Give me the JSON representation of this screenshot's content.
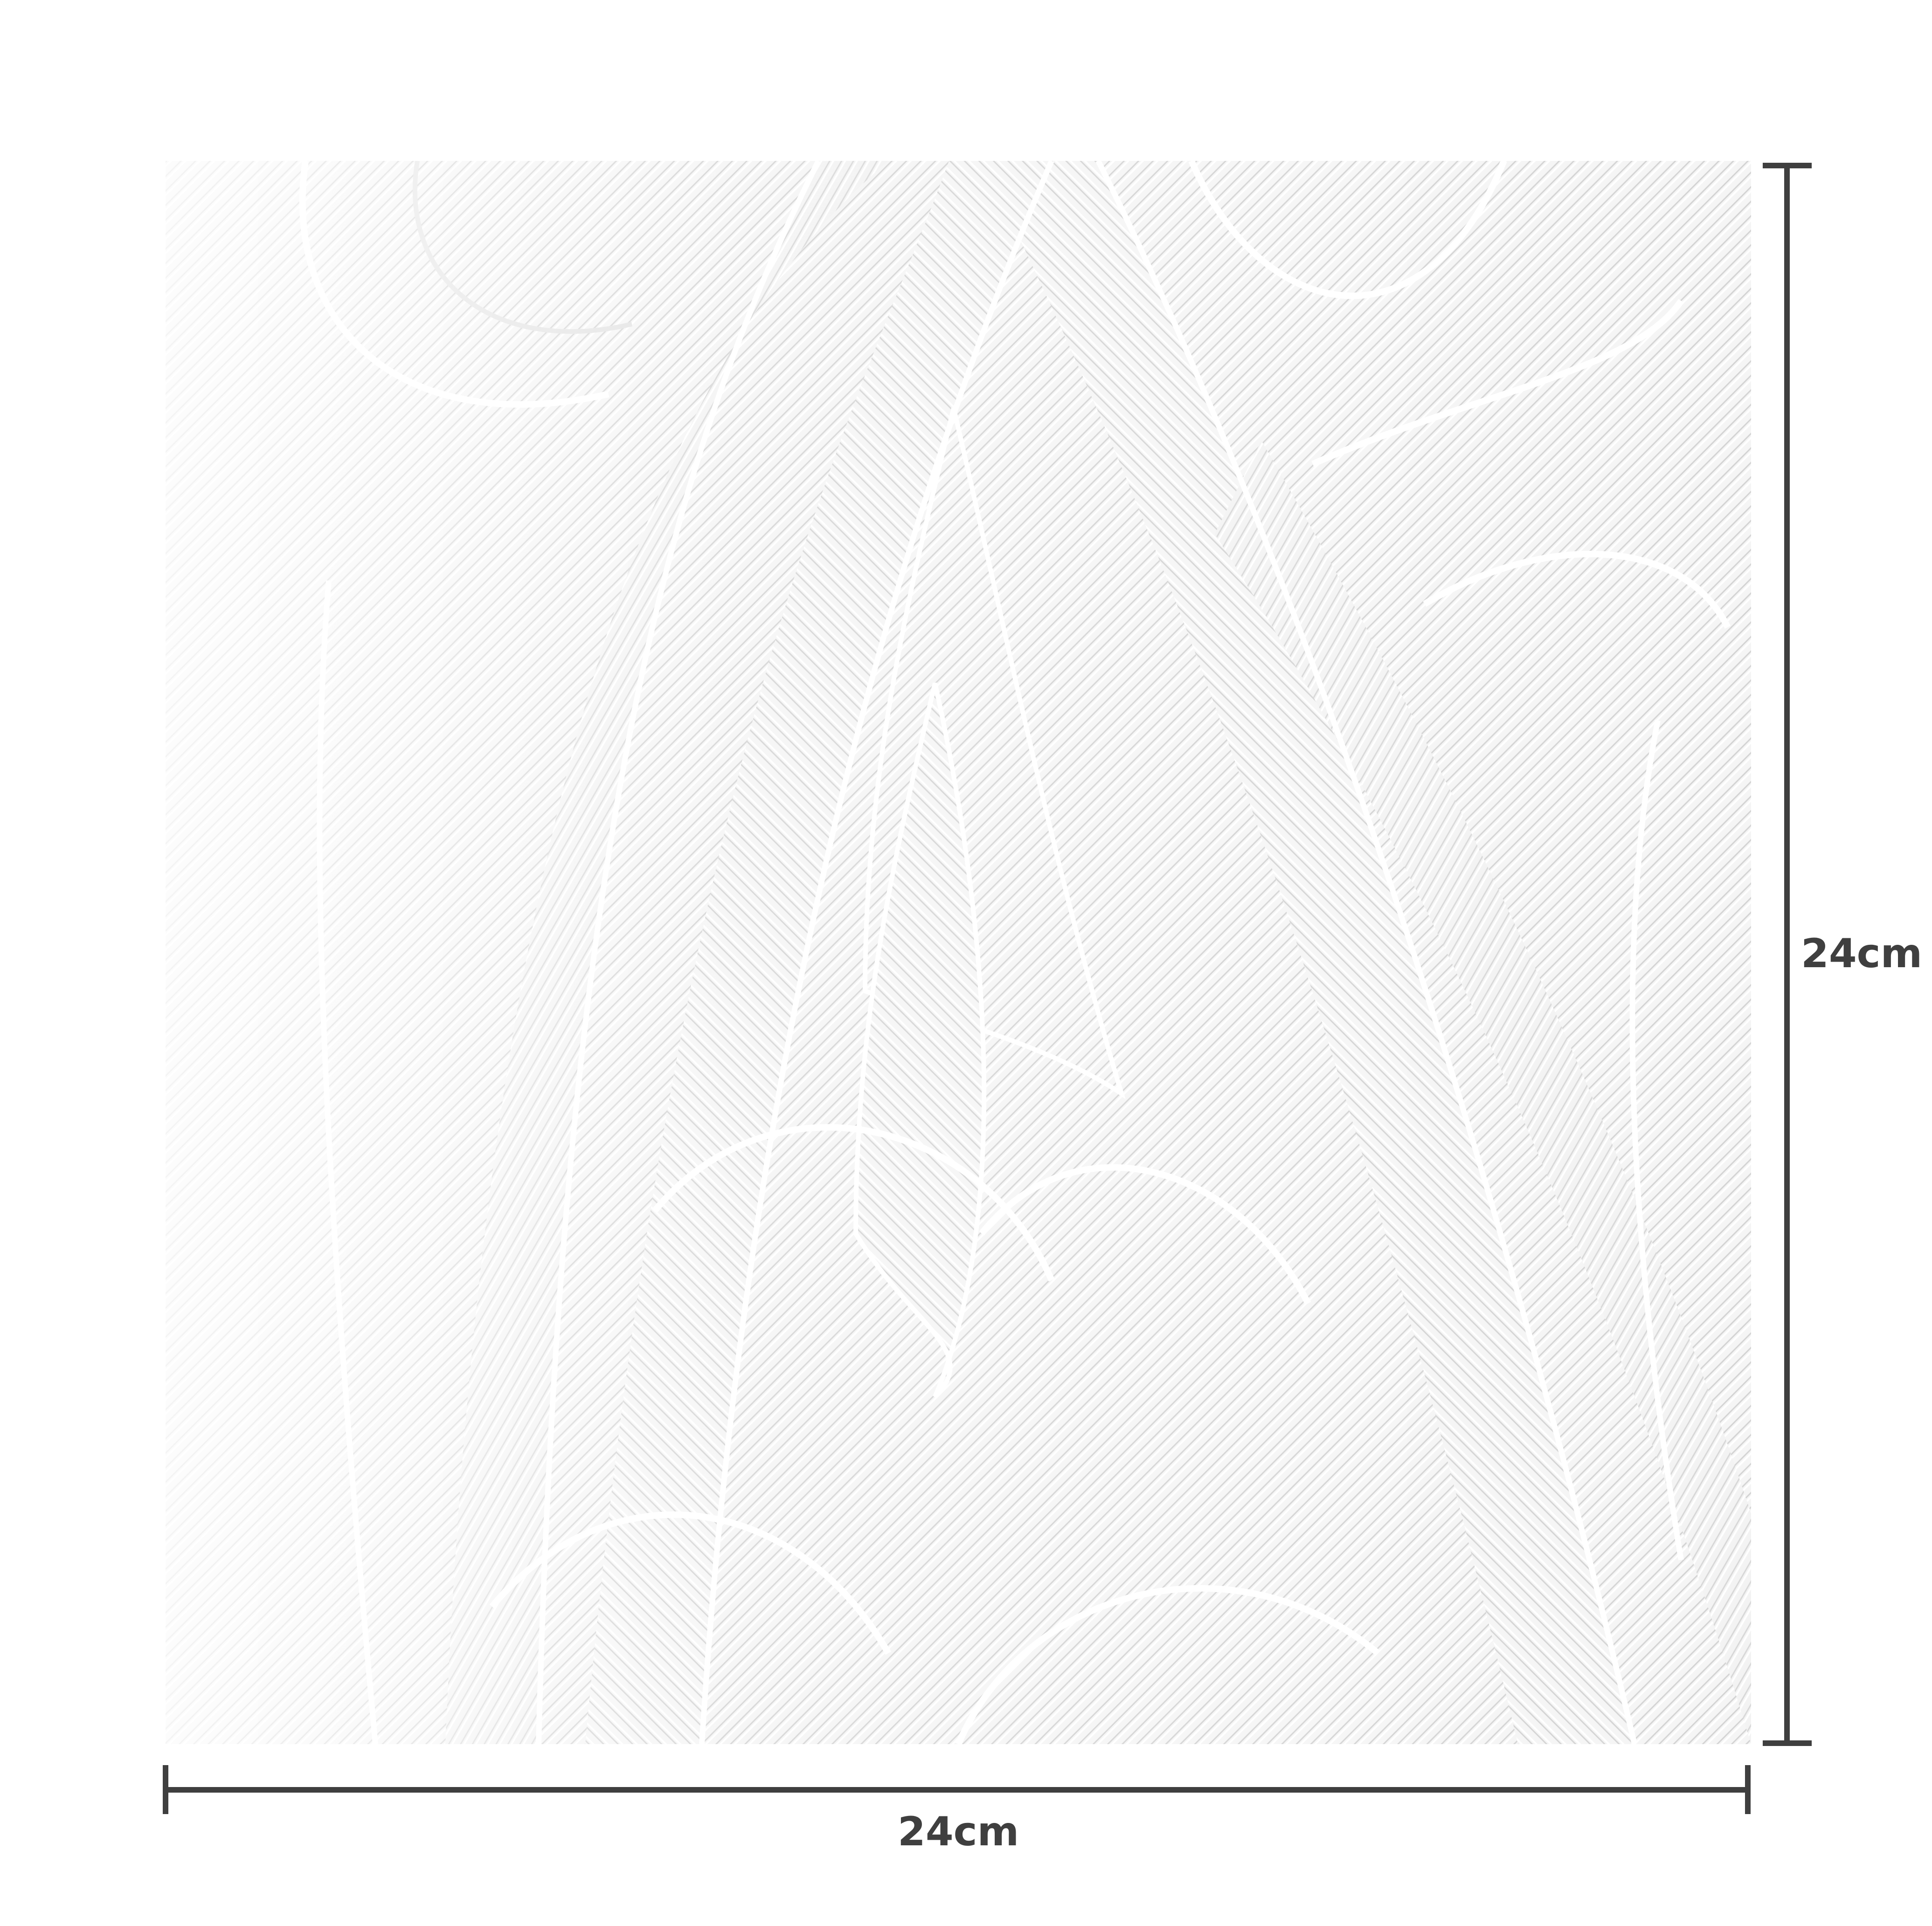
{
  "product": {
    "description_icon": "embossed-leaf-pattern-napkin",
    "background_color": "#f4f4f4",
    "emboss_line_color": "#d6d6d6",
    "emboss_ridge_color": "#ffffff"
  },
  "dimensions": {
    "width_label": "24cm",
    "height_label": "24cm",
    "line_color": "#3f3f3f"
  }
}
